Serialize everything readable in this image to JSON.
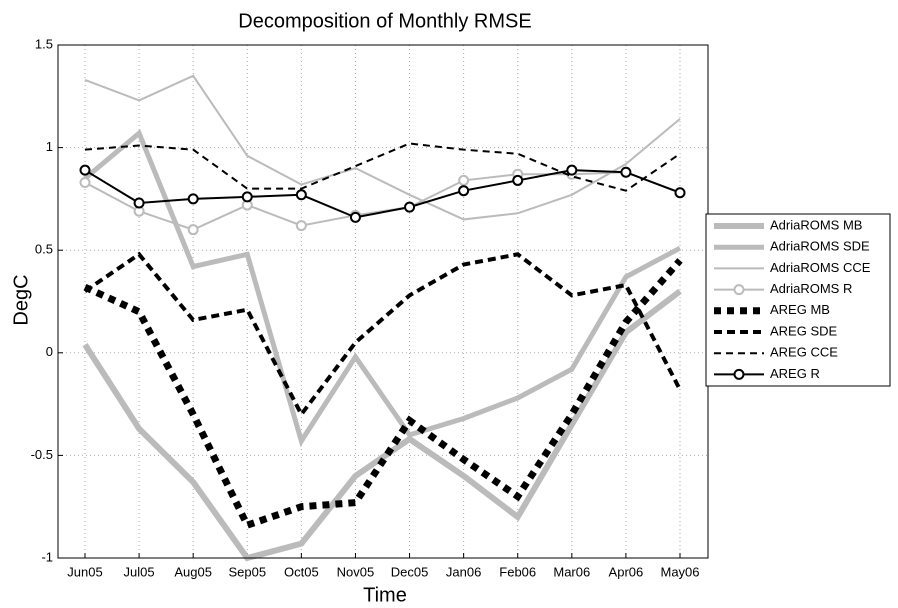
{
  "chart_data": {
    "type": "line",
    "title": "Decomposition of Monthly RMSE",
    "x_label": "Time",
    "y_label": "DegC",
    "categories": [
      "Jun05",
      "Jul05",
      "Aug05",
      "Sep05",
      "Oct05",
      "Nov05",
      "Dec05",
      "Jan06",
      "Feb06",
      "Mar06",
      "Apr06",
      "May06"
    ],
    "ylim": [
      -1,
      1.5
    ],
    "yticks": [
      -1,
      -0.5,
      0,
      0.5,
      1,
      1.5
    ],
    "grid": true,
    "legend": "outside-right",
    "series": [
      {
        "name": "AdriaROMS MB",
        "color": "#bbbbbb",
        "width": 6,
        "dash": "none",
        "marker": "none",
        "values": [
          0.04,
          -0.37,
          -0.63,
          -1.0,
          -0.93,
          -0.6,
          -0.42,
          -0.6,
          -0.8,
          -0.35,
          0.1,
          0.3
        ]
      },
      {
        "name": "AdriaROMS SDE",
        "color": "#bbbbbb",
        "width": 5,
        "dash": "none",
        "marker": "none",
        "values": [
          0.85,
          1.07,
          0.42,
          0.48,
          -0.43,
          -0.02,
          -0.4,
          -0.32,
          -0.22,
          -0.08,
          0.37,
          0.51
        ]
      },
      {
        "name": "AdriaROMS CCE",
        "color": "#bbbbbb",
        "width": 2,
        "dash": "none",
        "marker": "none",
        "values": [
          1.33,
          1.23,
          1.35,
          0.96,
          0.82,
          0.9,
          0.77,
          0.65,
          0.68,
          0.77,
          0.92,
          1.14
        ]
      },
      {
        "name": "AdriaROMS R",
        "color": "#bbbbbb",
        "width": 2,
        "dash": "none",
        "marker": "circle",
        "values": [
          0.83,
          0.69,
          0.6,
          0.72,
          0.62,
          0.67,
          0.71,
          0.84,
          0.87,
          0.87,
          0.88,
          0.78
        ]
      },
      {
        "name": "AREG MB",
        "color": "#000000",
        "width": 7,
        "dash": "7,6",
        "marker": "none",
        "values": [
          0.32,
          0.2,
          -0.3,
          -0.84,
          -0.75,
          -0.73,
          -0.33,
          -0.52,
          -0.7,
          -0.3,
          0.15,
          0.45
        ]
      },
      {
        "name": "AREG SDE",
        "color": "#000000",
        "width": 4,
        "dash": "8,5",
        "marker": "none",
        "values": [
          0.3,
          0.48,
          0.16,
          0.21,
          -0.3,
          0.05,
          0.28,
          0.43,
          0.48,
          0.28,
          0.33,
          -0.18
        ]
      },
      {
        "name": "AREG CCE",
        "color": "#000000",
        "width": 2,
        "dash": "7,5",
        "marker": "none",
        "values": [
          0.99,
          1.01,
          0.99,
          0.8,
          0.8,
          0.91,
          1.02,
          0.99,
          0.97,
          0.86,
          0.79,
          0.97
        ]
      },
      {
        "name": "AREG R",
        "color": "#000000",
        "width": 2,
        "dash": "none",
        "marker": "circle",
        "values": [
          0.89,
          0.73,
          0.75,
          0.76,
          0.77,
          0.66,
          0.71,
          0.79,
          0.84,
          0.89,
          0.88,
          0.78
        ]
      }
    ]
  }
}
